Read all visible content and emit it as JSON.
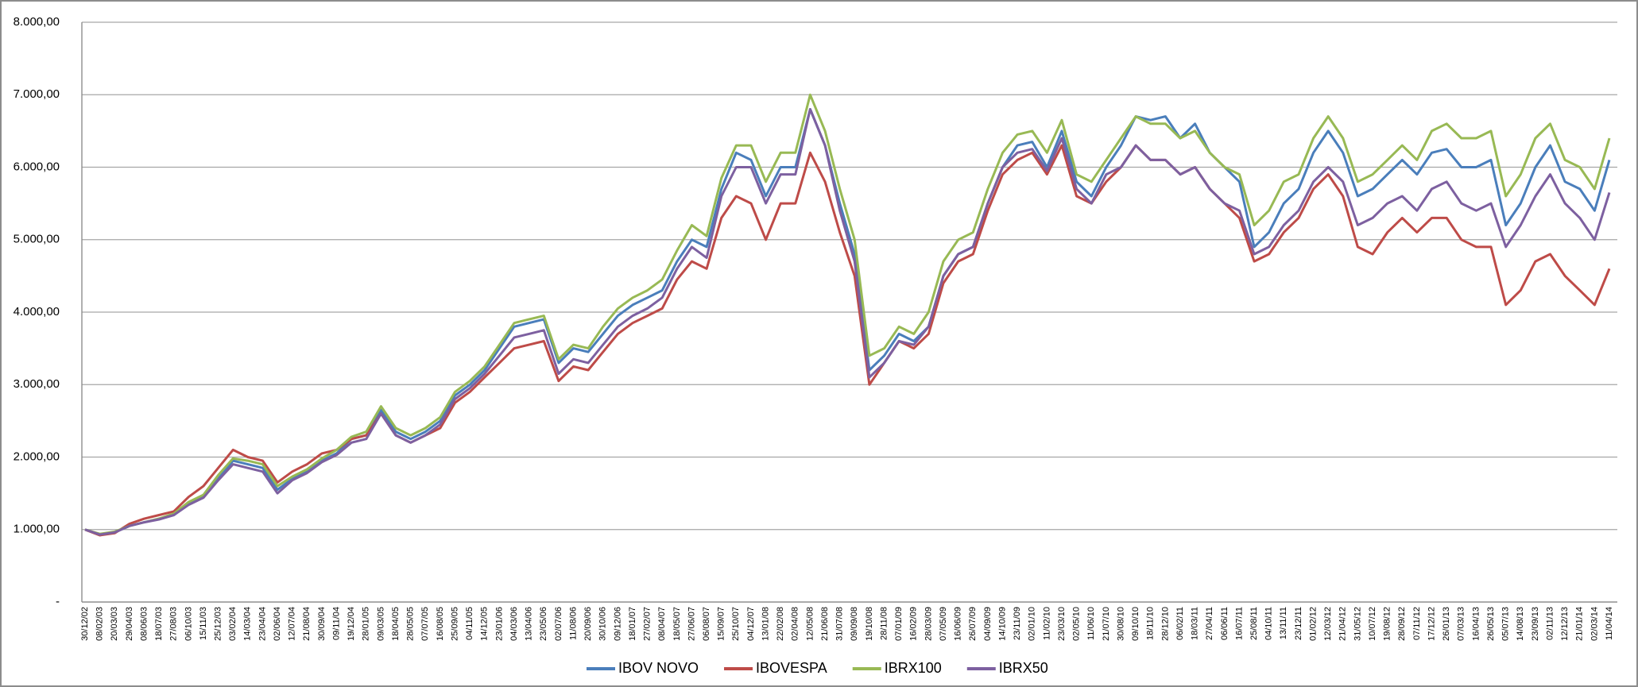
{
  "chart_data": {
    "type": "line",
    "categories": [
      "30/12/02",
      "08/02/03",
      "20/03/03",
      "29/04/03",
      "08/06/03",
      "18/07/03",
      "27/08/03",
      "06/10/03",
      "15/11/03",
      "25/12/03",
      "03/02/04",
      "14/03/04",
      "23/04/04",
      "02/06/04",
      "12/07/04",
      "21/08/04",
      "30/09/04",
      "09/11/04",
      "19/12/04",
      "28/01/05",
      "09/03/05",
      "18/04/05",
      "28/05/05",
      "07/07/05",
      "16/08/05",
      "25/09/05",
      "04/11/05",
      "14/12/05",
      "23/01/06",
      "04/03/06",
      "13/04/06",
      "23/05/06",
      "02/07/06",
      "11/08/06",
      "20/09/06",
      "30/10/06",
      "09/12/06",
      "18/01/07",
      "27/02/07",
      "08/04/07",
      "18/05/07",
      "27/06/07",
      "06/08/07",
      "15/09/07",
      "25/10/07",
      "04/12/07",
      "13/01/08",
      "22/02/08",
      "02/04/08",
      "12/05/08",
      "21/06/08",
      "31/07/08",
      "09/09/08",
      "19/10/08",
      "28/11/08",
      "07/01/09",
      "16/02/09",
      "28/03/09",
      "07/05/09",
      "16/06/09",
      "26/07/09",
      "04/09/09",
      "14/10/09",
      "23/11/09",
      "02/01/10",
      "11/02/10",
      "23/03/10",
      "02/05/10",
      "11/06/10",
      "21/07/10",
      "30/08/10",
      "09/10/10",
      "18/11/10",
      "28/12/10",
      "06/02/11",
      "18/03/11",
      "27/04/11",
      "06/06/11",
      "16/07/11",
      "25/08/11",
      "04/10/11",
      "13/11/11",
      "23/12/11",
      "01/02/12",
      "12/03/12",
      "21/04/12",
      "31/05/12",
      "10/07/12",
      "19/08/12",
      "28/09/12",
      "07/11/12",
      "17/12/12",
      "26/01/13",
      "07/03/13",
      "16/04/13",
      "26/05/13",
      "05/07/13",
      "14/08/13",
      "23/09/13",
      "02/11/13",
      "12/12/13",
      "21/01/14",
      "02/03/14",
      "11/04/14"
    ],
    "series": [
      {
        "name": "IBOV NOVO",
        "color": "#4a7ebb",
        "values": [
          1000,
          930,
          960,
          1050,
          1100,
          1150,
          1200,
          1350,
          1450,
          1700,
          1950,
          1900,
          1850,
          1550,
          1700,
          1800,
          1950,
          2050,
          2250,
          2300,
          2650,
          2350,
          2250,
          2350,
          2500,
          2850,
          3000,
          3200,
          3500,
          3800,
          3850,
          3900,
          3300,
          3500,
          3450,
          3700,
          3950,
          4100,
          4200,
          4300,
          4700,
          5000,
          4900,
          5700,
          6200,
          6100,
          5600,
          6000,
          6000,
          6800,
          6300,
          5500,
          4800,
          3200,
          3400,
          3700,
          3600,
          3800,
          4500,
          4800,
          4900,
          5500,
          6000,
          6300,
          6350,
          6000,
          6500,
          5800,
          5600,
          6000,
          6300,
          6700,
          6650,
          6700,
          6400,
          6600,
          6200,
          6000,
          5800,
          4900,
          5100,
          5500,
          5700,
          6200,
          6500,
          6200,
          5600,
          5700,
          5900,
          6100,
          5900,
          6200,
          6250,
          6000,
          6000,
          6100,
          5200,
          5500,
          6000,
          6300,
          5800,
          5700,
          5400,
          6100
        ]
      },
      {
        "name": "IBOVESPA",
        "color": "#be4b48",
        "values": [
          1000,
          920,
          950,
          1080,
          1150,
          1200,
          1250,
          1450,
          1600,
          1850,
          2100,
          2000,
          1950,
          1650,
          1800,
          1900,
          2050,
          2100,
          2250,
          2300,
          2600,
          2300,
          2200,
          2300,
          2400,
          2750,
          2900,
          3100,
          3300,
          3500,
          3550,
          3600,
          3050,
          3250,
          3200,
          3450,
          3700,
          3850,
          3950,
          4050,
          4450,
          4700,
          4600,
          5300,
          5600,
          5500,
          5000,
          5500,
          5500,
          6200,
          5800,
          5100,
          4500,
          3000,
          3300,
          3600,
          3500,
          3700,
          4400,
          4700,
          4800,
          5400,
          5900,
          6100,
          6200,
          5900,
          6300,
          5600,
          5500,
          5800,
          6000,
          6300,
          6100,
          6100,
          5900,
          6000,
          5700,
          5500,
          5300,
          4700,
          4800,
          5100,
          5300,
          5700,
          5900,
          5600,
          4900,
          4800,
          5100,
          5300,
          5100,
          5300,
          5300,
          5000,
          4900,
          4900,
          4100,
          4300,
          4700,
          4800,
          4500,
          4300,
          4100,
          4600
        ]
      },
      {
        "name": "IBRX100",
        "color": "#98b954",
        "values": [
          1000,
          940,
          970,
          1050,
          1100,
          1150,
          1220,
          1380,
          1480,
          1750,
          1980,
          1950,
          1900,
          1600,
          1730,
          1830,
          1980,
          2100,
          2280,
          2350,
          2700,
          2400,
          2300,
          2400,
          2550,
          2900,
          3050,
          3250,
          3550,
          3850,
          3900,
          3950,
          3350,
          3550,
          3500,
          3800,
          4050,
          4200,
          4300,
          4450,
          4850,
          5200,
          5050,
          5850,
          6300,
          6300,
          5800,
          6200,
          6200,
          7000,
          6500,
          5700,
          5000,
          3400,
          3500,
          3800,
          3700,
          4000,
          4700,
          5000,
          5100,
          5700,
          6200,
          6450,
          6500,
          6200,
          6650,
          5900,
          5800,
          6100,
          6400,
          6700,
          6600,
          6600,
          6400,
          6500,
          6200,
          6000,
          5900,
          5200,
          5400,
          5800,
          5900,
          6400,
          6700,
          6400,
          5800,
          5900,
          6100,
          6300,
          6100,
          6500,
          6600,
          6400,
          6400,
          6500,
          5600,
          5900,
          6400,
          6600,
          6100,
          6000,
          5700,
          6400
        ]
      },
      {
        "name": "IBRX50",
        "color": "#7d60a0",
        "values": [
          1000,
          930,
          960,
          1050,
          1100,
          1140,
          1200,
          1340,
          1440,
          1680,
          1900,
          1850,
          1800,
          1500,
          1680,
          1780,
          1930,
          2030,
          2200,
          2250,
          2600,
          2300,
          2200,
          2300,
          2450,
          2800,
          2950,
          3150,
          3400,
          3650,
          3700,
          3750,
          3150,
          3350,
          3300,
          3550,
          3800,
          3950,
          4050,
          4200,
          4600,
          4900,
          4750,
          5600,
          6000,
          6000,
          5500,
          5900,
          5900,
          6800,
          6300,
          5400,
          4700,
          3100,
          3300,
          3600,
          3550,
          3800,
          4500,
          4800,
          4900,
          5500,
          6000,
          6200,
          6250,
          5950,
          6400,
          5700,
          5500,
          5900,
          6000,
          6300,
          6100,
          6100,
          5900,
          6000,
          5700,
          5500,
          5400,
          4800,
          4900,
          5200,
          5400,
          5800,
          6000,
          5800,
          5200,
          5300,
          5500,
          5600,
          5400,
          5700,
          5800,
          5500,
          5400,
          5500,
          4900,
          5200,
          5600,
          5900,
          5500,
          5300,
          5000,
          5650
        ]
      }
    ],
    "ylim": [
      0,
      8000
    ],
    "yticks": [
      {
        "value": 0,
        "label": "-"
      },
      {
        "value": 1000,
        "label": "1.000,00"
      },
      {
        "value": 2000,
        "label": "2.000,00"
      },
      {
        "value": 3000,
        "label": "3.000,00"
      },
      {
        "value": 4000,
        "label": "4.000,00"
      },
      {
        "value": 5000,
        "label": "5.000,00"
      },
      {
        "value": 6000,
        "label": "6.000,00"
      },
      {
        "value": 7000,
        "label": "7.000,00"
      },
      {
        "value": 8000,
        "label": "8.000,00"
      }
    ],
    "grid": true,
    "legend": "bottom"
  }
}
